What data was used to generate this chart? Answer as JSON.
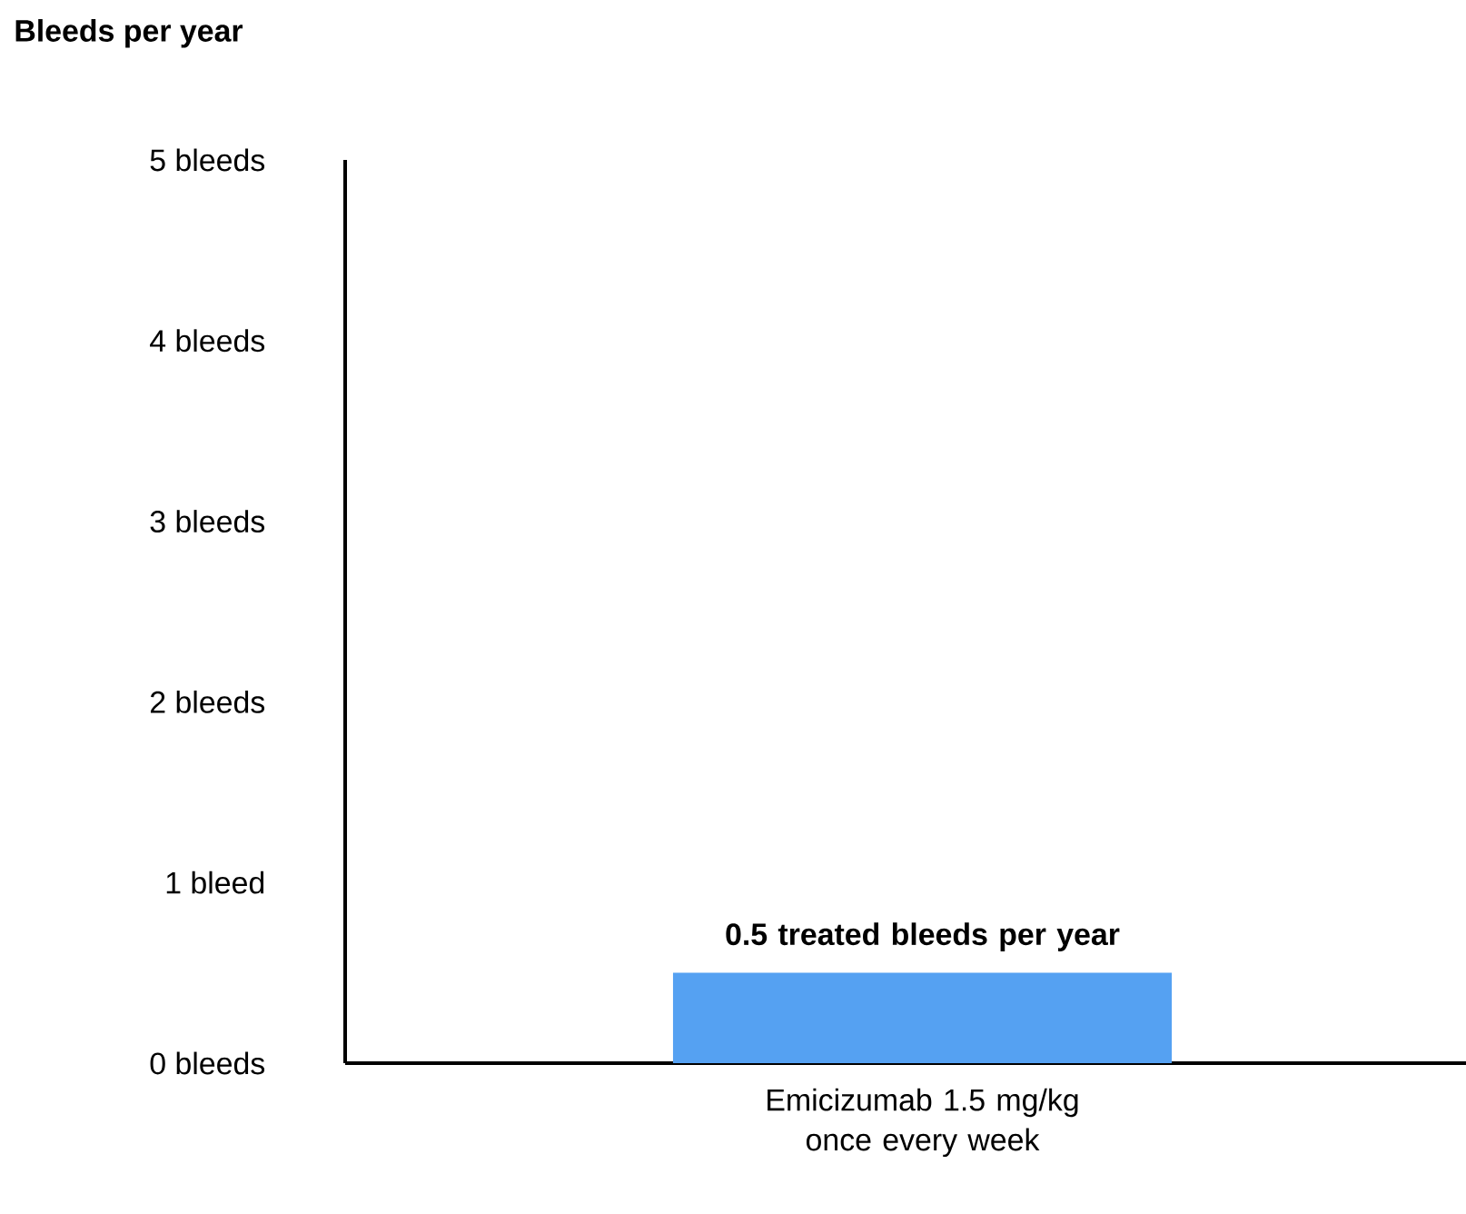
{
  "chart_data": {
    "type": "bar",
    "ylabel": "Bleeds per year",
    "categories": [
      "Emicizumab 1.5 mg/kg once every week"
    ],
    "values": [
      0.5
    ],
    "color": "#55a1f2",
    "value_labels": [
      "0.5 treated bleeds per year"
    ],
    "ylim": [
      0,
      5
    ],
    "yticks": [
      {
        "value": 0,
        "label": "0 bleeds"
      },
      {
        "value": 1,
        "label": "1 bleed"
      },
      {
        "value": 2,
        "label": "2 bleeds"
      },
      {
        "value": 3,
        "label": "3 bleeds"
      },
      {
        "value": 4,
        "label": "4 bleeds"
      },
      {
        "value": 5,
        "label": "5 bleeds"
      }
    ]
  }
}
